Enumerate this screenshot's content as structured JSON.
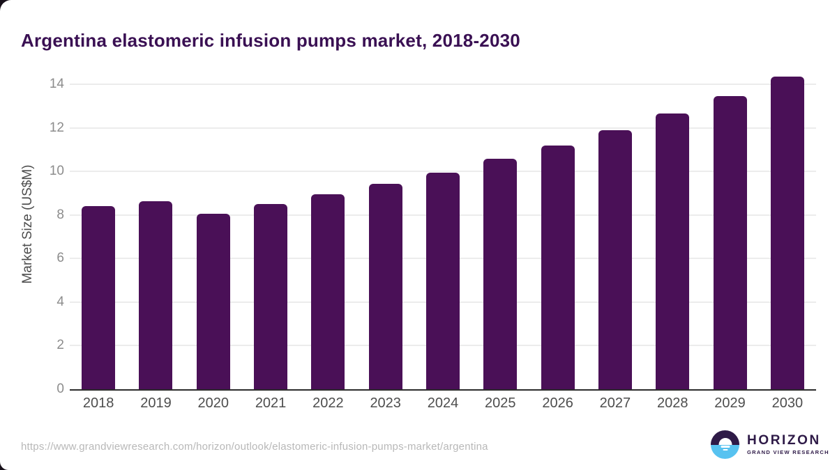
{
  "page": {
    "title": "Argentina elastomeric infusion pumps market, 2018-2030"
  },
  "chart_data": {
    "type": "bar",
    "title": "Argentina elastomeric infusion pumps market, 2018-2030",
    "categories": [
      "2018",
      "2019",
      "2020",
      "2021",
      "2022",
      "2023",
      "2024",
      "2025",
      "2026",
      "2027",
      "2028",
      "2029",
      "2030"
    ],
    "values": [
      8.4,
      8.65,
      8.05,
      8.5,
      8.95,
      9.45,
      9.95,
      10.6,
      11.2,
      11.9,
      12.65,
      13.45,
      14.35
    ],
    "xlabel": "",
    "ylabel": "Market Size (US$M)",
    "yticks": [
      0,
      2,
      4,
      6,
      8,
      10,
      12,
      14
    ],
    "ylim": [
      0,
      15
    ],
    "grid": "horizontal",
    "legend": "none"
  },
  "footer": {
    "source_url": "https://www.grandviewresearch.com/horizon/outlook/elastomeric-infusion-pumps-market/argentina",
    "logo": {
      "brand": "HORIZON",
      "sub_brand": "GRAND VIEW RESEARCH"
    }
  },
  "colors": {
    "title": "#3a1053",
    "bar": "#4a1057",
    "y_tick": "#8c8c8c",
    "x_tick": "#4d4d4d",
    "axis_label": "#4d4d4d",
    "gridline": "#ececec",
    "baseline": "#2b2b2b",
    "url_text": "#b8b8b8",
    "logo_purple": "#2e1a47",
    "logo_blue": "#57c2f0"
  }
}
